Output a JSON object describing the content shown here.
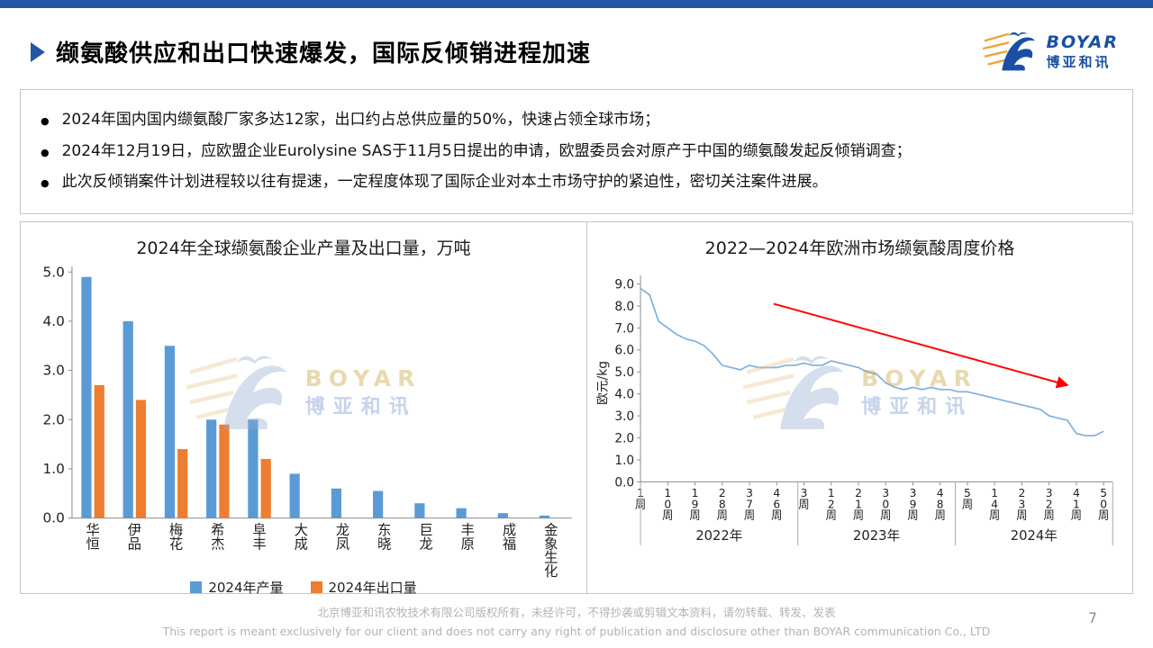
{
  "slide": {
    "title": "缬氨酸供应和出口快速爆发，国际反倾销进程加速",
    "page_number": "7"
  },
  "logo": {
    "brand": "BOYAR",
    "brand_cn": "博亚和讯",
    "brand_blue": "#1A4FA5",
    "stripe_orange": "#F0A23C"
  },
  "bullets": [
    "2024年国内国内缬氨酸厂家多达12家，出口约占总供应量的50%，快速占领全球市场；",
    "2024年12月19日，应欧盟企业Eurolysine SAS于11月5日提出的申请，欧盟委员会对原产于中国的缬氨酸发起反倾销调查；",
    "此次反倾销案件计划进程较以往有提速，一定程度体现了国际企业对本土市场守护的紧迫性，密切关注案件进展。"
  ],
  "footer": {
    "line1": "北京博亚和讯农牧技术有限公司版权所有，未经许可，不得抄袭或剪辑文本资料，请勿转载、转发、发表",
    "line2": "This report is meant exclusively for our client and does not carry any right of publication and disclosure other than BOYAR communication Co., LTD"
  },
  "chart_data": [
    {
      "type": "bar",
      "title": "2024年全球缬氨酸企业产量及出口量，万吨",
      "categories": [
        "华恒",
        "伊品",
        "梅花",
        "希杰",
        "阜丰",
        "大成",
        "龙凤",
        "东晓",
        "巨龙",
        "丰原",
        "成福",
        "金象生化"
      ],
      "series": [
        {
          "name": "2024年产量",
          "color": "#5B9BD5",
          "values": [
            4.9,
            4.0,
            3.5,
            2.0,
            2.0,
            0.9,
            0.6,
            0.55,
            0.3,
            0.2,
            0.1,
            0.05
          ]
        },
        {
          "name": "2024年出口量",
          "color": "#ED7D31",
          "values": [
            2.7,
            2.4,
            1.4,
            1.9,
            1.2,
            0,
            0,
            0,
            0,
            0,
            0,
            0
          ]
        }
      ],
      "ylim": [
        0,
        5.0
      ],
      "yticks": [
        0,
        1,
        2,
        3,
        4,
        5
      ],
      "grid": false,
      "legend_position": "bottom"
    },
    {
      "type": "line",
      "title": "2022—2024年欧洲市场缬氨酸周度价格",
      "ylabel": "欧元/kg",
      "ylim": [
        0,
        9.0
      ],
      "yticks": [
        0,
        1,
        2,
        3,
        4,
        5,
        6,
        7,
        8,
        9
      ],
      "line_color": "#7FAFDC",
      "week_step": 3,
      "total_weeks": 156,
      "tick_week_step": 9,
      "x_tick_labels": [
        "1周",
        "10周",
        "19周",
        "28周",
        "37周",
        "46周",
        "3周",
        "12周",
        "21周",
        "30周",
        "39周",
        "48周",
        "5周",
        "14周",
        "23周",
        "32周",
        "41周",
        "50周"
      ],
      "year_groups": [
        "2022年",
        "2023年",
        "2024年"
      ],
      "year_bound_weeks": [
        0,
        52,
        104,
        156
      ],
      "values": [
        8.8,
        8.5,
        7.3,
        7.0,
        6.7,
        6.5,
        6.4,
        6.2,
        5.8,
        5.3,
        5.2,
        5.1,
        5.3,
        5.2,
        5.2,
        5.2,
        5.3,
        5.3,
        5.4,
        5.3,
        5.3,
        5.5,
        5.4,
        5.3,
        5.2,
        5.0,
        4.9,
        4.5,
        4.3,
        4.2,
        4.3,
        4.2,
        4.3,
        4.2,
        4.2,
        4.1,
        4.1,
        4.0,
        3.9,
        3.8,
        3.7,
        3.6,
        3.5,
        3.4,
        3.3,
        3.0,
        2.9,
        2.8,
        2.2,
        2.1,
        2.1,
        2.3
      ],
      "annotation_arrow": {
        "color": "#FF0000",
        "from_week": 44,
        "from_value": 8.1,
        "to_week": 141,
        "to_value": 4.4
      }
    }
  ]
}
